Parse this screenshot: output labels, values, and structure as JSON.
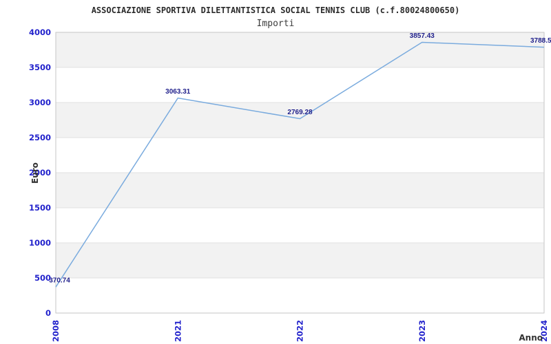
{
  "chart_data": {
    "type": "line",
    "title": "ASSOCIAZIONE SPORTIVA DILETTANTISTICA SOCIAL TENNIS CLUB (c.f.80024800650)",
    "subtitle": "Importi",
    "xlabel": "Anno",
    "ylabel": "Euro",
    "categories": [
      "2008",
      "2021",
      "2022",
      "2023",
      "2024"
    ],
    "series": [
      {
        "name": "Importi",
        "values": [
          370.74,
          3063.31,
          2769.28,
          3857.43,
          3788.5
        ]
      }
    ],
    "point_labels": [
      "370.74",
      "3063.31",
      "2769.28",
      "3857.43",
      "3788.5"
    ],
    "ylim": [
      0,
      4000
    ],
    "yticks": [
      0,
      500,
      1000,
      1500,
      2000,
      2500,
      3000,
      3500,
      4000
    ],
    "grid": true,
    "alternating_bands": true,
    "legend_position": "none",
    "colors": {
      "line": "#7aabde",
      "tick_label": "#2323cc",
      "point_label": "#1f1f8b",
      "band": "#f2f2f2",
      "gridline": "#e0e0e0",
      "plot_border": "#c6c6c6",
      "title": "#2b2b2b",
      "subtitle": "#3c3c3c",
      "axis_label": "#333333",
      "background": "#ffffff"
    }
  }
}
